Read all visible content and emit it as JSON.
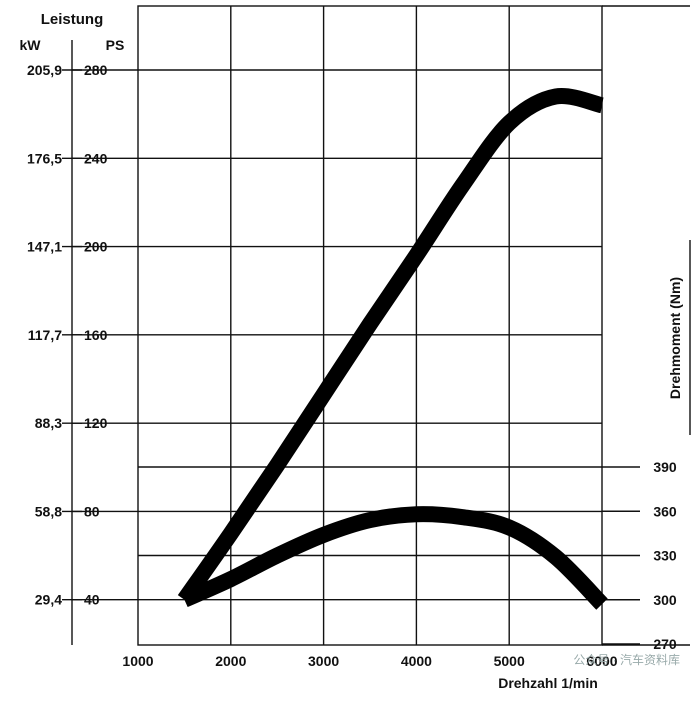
{
  "chart_data": {
    "type": "line",
    "title": "",
    "left_axis": {
      "header": "Leistung",
      "units": [
        "kW",
        "PS"
      ],
      "ticks_kw": [
        "205,9",
        "176,5",
        "147,1",
        "117,7",
        "88,3",
        "58,8",
        "29,4"
      ],
      "ticks_ps": [
        "280",
        "240",
        "200",
        "160",
        "120",
        "80",
        "40"
      ],
      "ylim_ps": [
        0,
        280
      ]
    },
    "right_axis": {
      "label": "Drehmoment (Nm)",
      "ticks": [
        "390",
        "360",
        "330",
        "300",
        "270"
      ],
      "ylim_nm": [
        270,
        390
      ]
    },
    "x_axis": {
      "label": "Drehzahl 1/min",
      "ticks": [
        "1000",
        "2000",
        "3000",
        "4000",
        "5000",
        "6000"
      ],
      "xlim": [
        1000,
        6000
      ]
    },
    "grid": true,
    "series": [
      {
        "axis": "left_ps",
        "x": [
          1500,
          2000,
          2500,
          3000,
          3500,
          4000,
          4500,
          5000,
          5500,
          6000
        ],
        "values": [
          40,
          70,
          101,
          133,
          165,
          196,
          228,
          256,
          268,
          264
        ]
      },
      {
        "axis": "right_nm",
        "x": [
          1500,
          2000,
          2500,
          3000,
          3500,
          4000,
          4500,
          5000,
          5500,
          6000
        ],
        "values": [
          300,
          314,
          330,
          344,
          354,
          358,
          356,
          349,
          329,
          297
        ]
      }
    ]
  },
  "watermark": "公众号 · 汽车资料库"
}
